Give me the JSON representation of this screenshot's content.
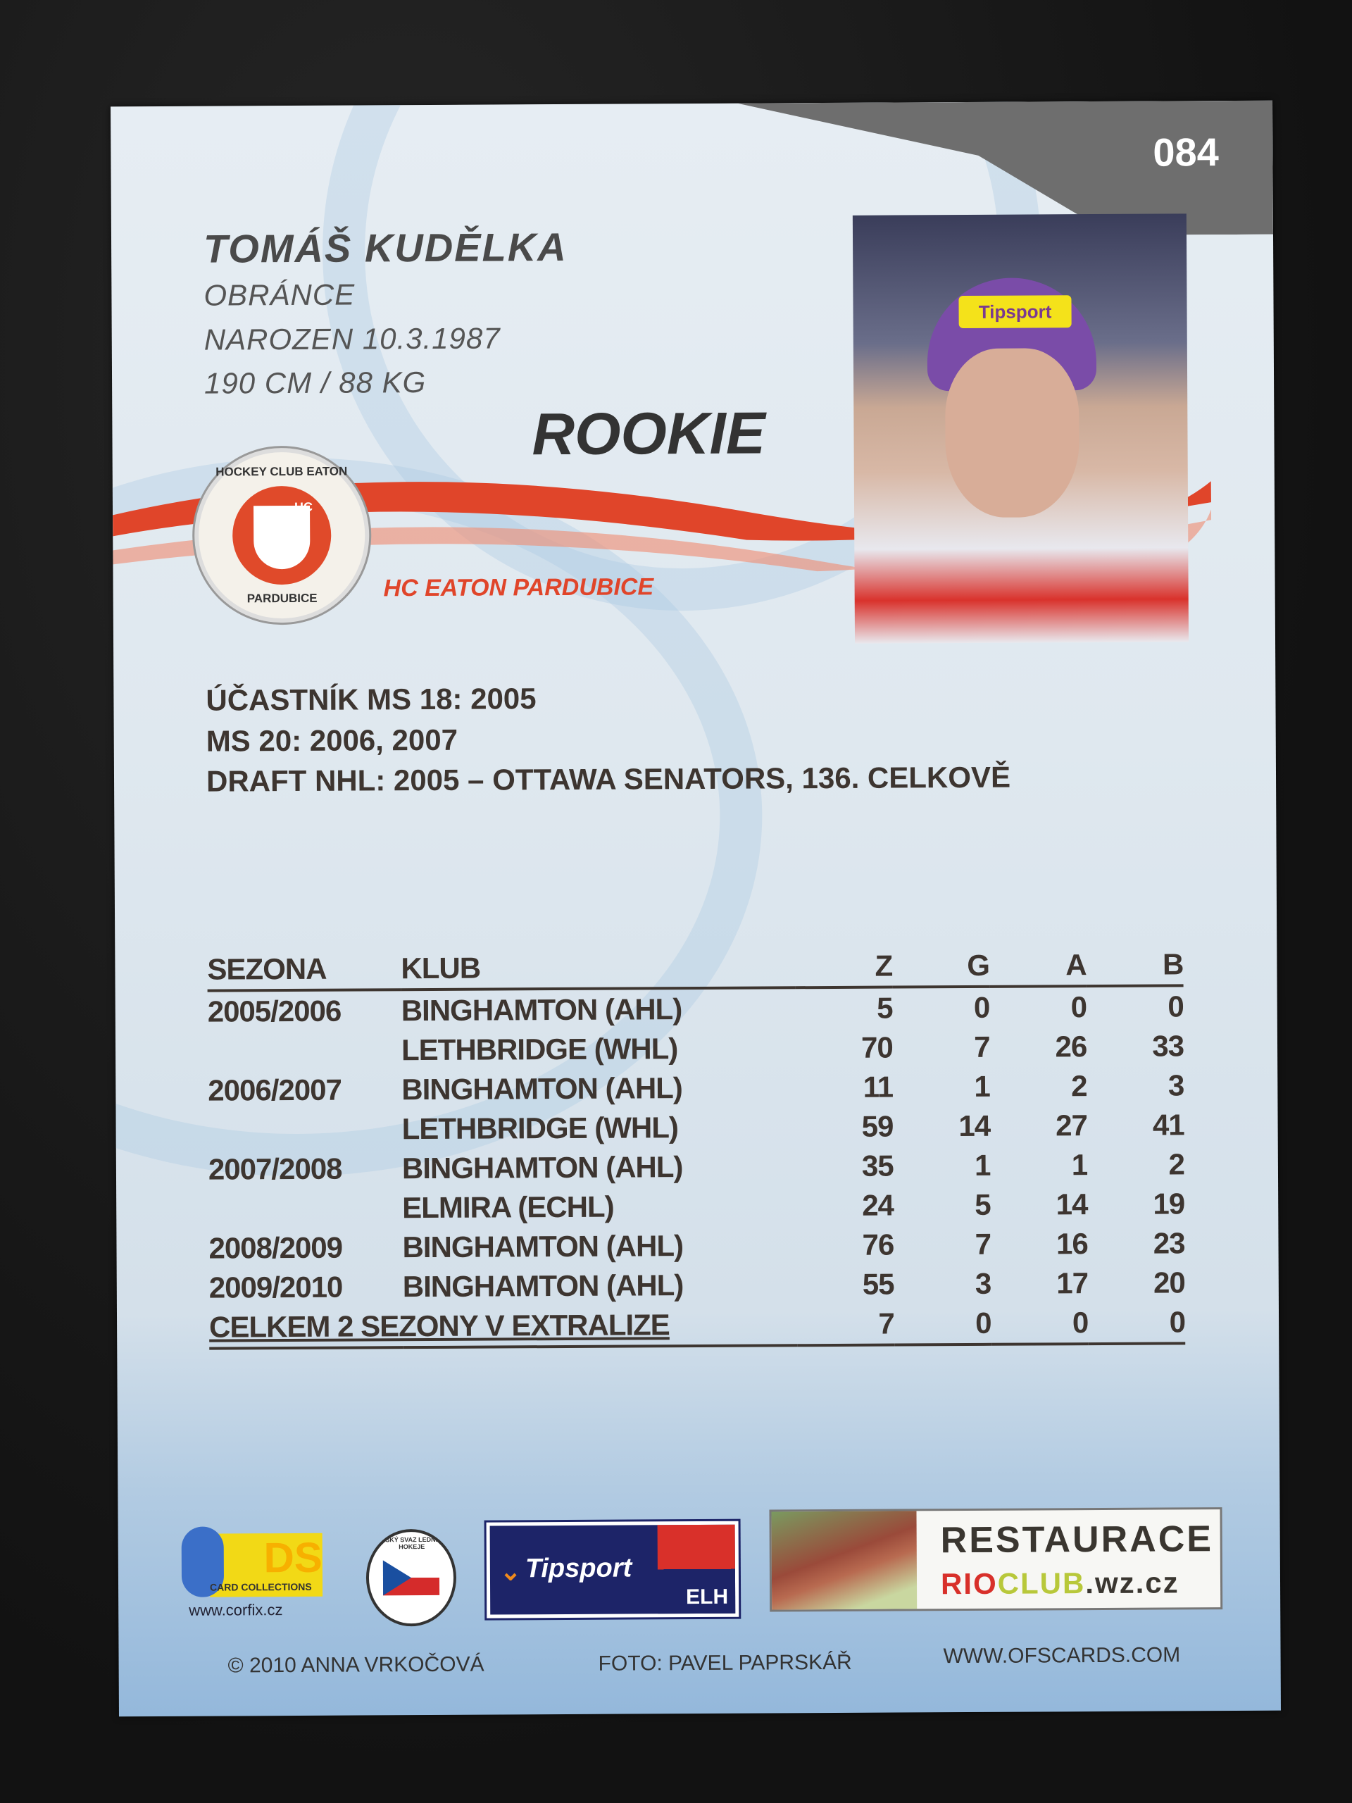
{
  "card": {
    "number": "084",
    "player_name": "TOMÁŠ KUDĚLKA",
    "position": "OBRÁNCE",
    "born": "NAROZEN 10.3.1987",
    "size": "190 CM / 88 KG",
    "badge": "ROOKIE",
    "team": "HC EATON PARDUBICE",
    "team_logo": {
      "top": "HOCKEY CLUB EATON",
      "bottom": "PARDUBICE",
      "mark": "HC"
    },
    "photo_helmet_ad": "Tipsport",
    "info": [
      "ÚČASTNÍK MS 18: 2005",
      "MS 20: 2006, 2007",
      "DRAFT NHL: 2005 – OTTAWA SENATORS, 136. CELKOVĚ"
    ]
  },
  "stats": {
    "headers": [
      "SEZONA",
      "KLUB",
      "Z",
      "G",
      "A",
      "B"
    ],
    "rows": [
      [
        "2005/2006",
        "BINGHAMTON (AHL)",
        "5",
        "0",
        "0",
        "0"
      ],
      [
        "",
        "LETHBRIDGE (WHL)",
        "70",
        "7",
        "26",
        "33"
      ],
      [
        "2006/2007",
        "BINGHAMTON (AHL)",
        "11",
        "1",
        "2",
        "3"
      ],
      [
        "",
        "LETHBRIDGE (WHL)",
        "59",
        "14",
        "27",
        "41"
      ],
      [
        "2007/2008",
        "BINGHAMTON (AHL)",
        "35",
        "1",
        "1",
        "2"
      ],
      [
        "",
        "ELMIRA (ECHL)",
        "24",
        "5",
        "14",
        "19"
      ],
      [
        "2008/2009",
        "BINGHAMTON (AHL)",
        "76",
        "7",
        "16",
        "23"
      ],
      [
        "2009/2010",
        "BINGHAMTON (AHL)",
        "55",
        "3",
        "17",
        "20"
      ]
    ],
    "total": [
      "CELKEM 2 SEZONY V EXTRALIZE",
      "7",
      "0",
      "0",
      "0"
    ]
  },
  "sponsors": {
    "ds": {
      "logo": "DS",
      "sub": "CARD COLLECTIONS",
      "url": "www.corfix.cz"
    },
    "cslh": {
      "text": "ČESKÝ SVAZ LEDNÍHO HOKEJE"
    },
    "tipsport": {
      "text": "Tipsport",
      "elh": "ELH"
    },
    "restaurace": {
      "title": "RESTAURACE",
      "url_rio": "RIO",
      "url_club": "CLUB",
      "url_rest": ".wz.cz"
    }
  },
  "footer": {
    "copyright": "© 2010 ANNA VRKOČOVÁ",
    "photo": "FOTO: PAVEL PAPRSKÁŘ",
    "website": "WWW.OFSCARDS.COM"
  },
  "colors": {
    "accent_red": "#e0452a",
    "text_dark": "#3d3530",
    "corner_gray": "#6e6e6e"
  }
}
